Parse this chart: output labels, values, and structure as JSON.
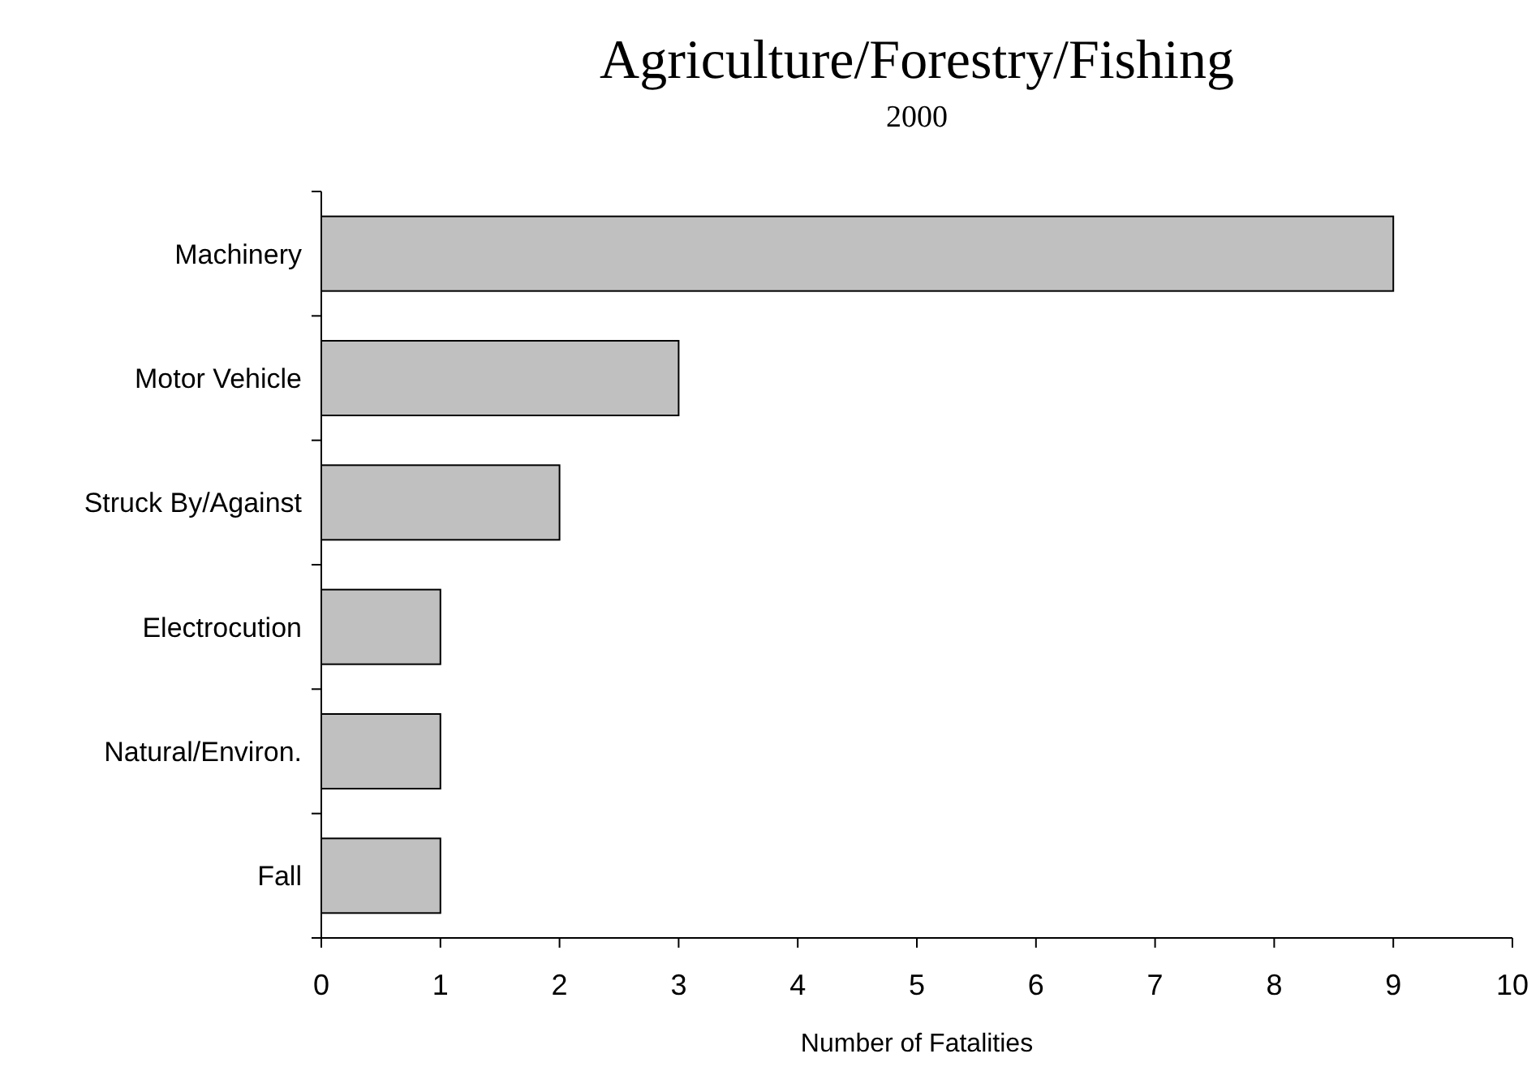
{
  "chart_data": {
    "type": "bar",
    "title": "Agriculture/Forestry/Fishing",
    "subtitle": "2000",
    "xlabel": "Number of Fatalities",
    "orientation": "horizontal",
    "categories": [
      "Machinery",
      "Motor Vehicle",
      "Struck By/Against",
      "Electrocution",
      "Natural/Environ.",
      "Fall"
    ],
    "values": [
      9,
      3,
      2,
      1,
      1,
      1
    ],
    "color": "#c0c0c0",
    "xlim": [
      0,
      10
    ],
    "xticks": [
      0,
      1,
      2,
      3,
      4,
      5,
      6,
      7,
      8,
      9,
      10
    ]
  }
}
